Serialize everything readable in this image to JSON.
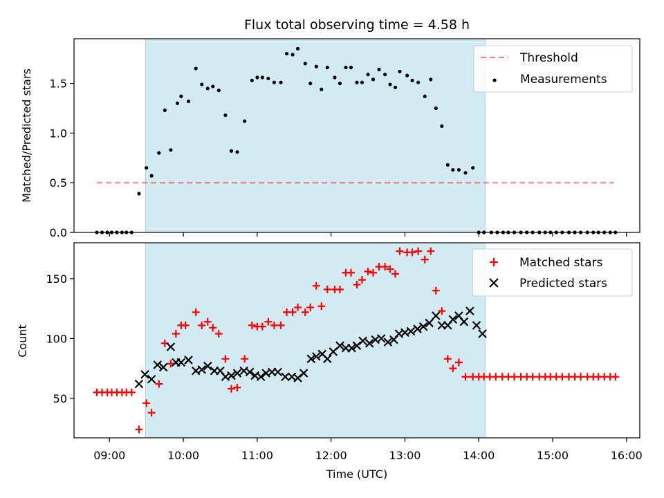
{
  "title": "Flux total observing time = 4.58 h",
  "x_axis": {
    "label": "Time (UTC)",
    "ticks": [
      "09:00",
      "10:00",
      "11:00",
      "12:00",
      "13:00",
      "14:00",
      "15:00",
      "16:00"
    ],
    "tick_hours": [
      9,
      10,
      11,
      12,
      13,
      14,
      15,
      16
    ],
    "range_hours": [
      8.52,
      16.18
    ]
  },
  "shaded_interval_hours": [
    9.49,
    14.09
  ],
  "shade_color": "#add8e6",
  "chart_data": [
    {
      "type": "scatter",
      "ylabel": "Matched/Predicted stars",
      "ylim": [
        0,
        1.95
      ],
      "yticks": [
        0.0,
        0.5,
        1.0,
        1.5
      ],
      "ytick_labels": [
        "0.0",
        "0.5",
        "1.0",
        "1.5"
      ],
      "legend_placement": "top-right",
      "threshold": {
        "name": "Threshold",
        "value": 0.5,
        "x": [
          8.83,
          15.83
        ],
        "color": "#ff0000",
        "style": "dashed"
      },
      "series": [
        {
          "name": "Measurements",
          "marker": "dot",
          "color": "#000000",
          "x": [
            8.83,
            8.9,
            8.97,
            9.03,
            9.1,
            9.17,
            9.23,
            9.3,
            9.4,
            9.5,
            9.57,
            9.67,
            9.75,
            9.83,
            9.92,
            9.97,
            10.07,
            10.17,
            10.25,
            10.33,
            10.4,
            10.48,
            10.57,
            10.65,
            10.73,
            10.83,
            10.93,
            11.0,
            11.07,
            11.15,
            11.23,
            11.32,
            11.4,
            11.48,
            11.55,
            11.65,
            11.72,
            11.8,
            11.87,
            11.95,
            12.05,
            12.12,
            12.2,
            12.27,
            12.35,
            12.42,
            12.5,
            12.57,
            12.65,
            12.73,
            12.8,
            12.87,
            12.93,
            13.03,
            13.1,
            13.18,
            13.27,
            13.35,
            13.42,
            13.5,
            13.58,
            13.65,
            13.73,
            13.82,
            13.92,
            14.0,
            14.07,
            14.17,
            14.25,
            14.33,
            14.4,
            14.48,
            14.57,
            14.65,
            14.73,
            14.82,
            14.9,
            14.97,
            15.05,
            15.13,
            15.22,
            15.3,
            15.38,
            15.47,
            15.55,
            15.62,
            15.7,
            15.78,
            15.85
          ],
          "y": [
            0,
            0,
            0,
            0,
            0,
            0,
            0,
            0,
            0.39,
            0.65,
            0.57,
            0.8,
            1.23,
            0.83,
            1.3,
            1.37,
            1.32,
            1.65,
            1.49,
            1.45,
            1.47,
            1.43,
            1.18,
            0.82,
            0.81,
            1.12,
            1.53,
            1.56,
            1.56,
            1.55,
            1.51,
            1.51,
            1.8,
            1.79,
            1.85,
            1.7,
            1.5,
            1.67,
            1.44,
            1.66,
            1.56,
            1.5,
            1.66,
            1.66,
            1.51,
            1.51,
            1.59,
            1.54,
            1.64,
            1.59,
            1.49,
            1.46,
            1.62,
            1.58,
            1.53,
            1.51,
            1.37,
            1.54,
            1.25,
            1.07,
            0.68,
            0.63,
            0.63,
            0.6,
            0.65,
            0,
            0,
            0,
            0,
            0,
            0,
            0,
            0,
            0,
            0,
            0,
            0,
            0,
            0,
            0,
            0,
            0,
            0,
            0,
            0,
            0,
            0,
            0,
            0
          ]
        }
      ]
    },
    {
      "type": "scatter",
      "ylabel": "Count",
      "ylim": [
        17,
        180
      ],
      "yticks": [
        50,
        100,
        150
      ],
      "ytick_labels": [
        "50",
        "100",
        "150"
      ],
      "legend_placement": "top-right",
      "series": [
        {
          "name": "Matched stars",
          "marker": "plus",
          "color": "#ff0000",
          "x": [
            8.83,
            8.9,
            8.97,
            9.03,
            9.1,
            9.17,
            9.23,
            9.3,
            9.4,
            9.5,
            9.57,
            9.67,
            9.75,
            9.83,
            9.9,
            9.97,
            10.03,
            10.17,
            10.25,
            10.33,
            10.4,
            10.48,
            10.57,
            10.65,
            10.73,
            10.83,
            10.93,
            11.0,
            11.07,
            11.15,
            11.23,
            11.32,
            11.4,
            11.48,
            11.55,
            11.65,
            11.72,
            11.8,
            11.87,
            11.95,
            12.05,
            12.12,
            12.2,
            12.27,
            12.35,
            12.42,
            12.5,
            12.57,
            12.65,
            12.73,
            12.8,
            12.87,
            12.93,
            13.03,
            13.1,
            13.18,
            13.27,
            13.35,
            13.42,
            13.5,
            13.58,
            13.65,
            13.73,
            13.82,
            13.92,
            14.0,
            14.07,
            14.15,
            14.23,
            14.32,
            14.4,
            14.48,
            14.57,
            14.65,
            14.73,
            14.82,
            14.9,
            14.97,
            15.05,
            15.13,
            15.22,
            15.3,
            15.38,
            15.47,
            15.55,
            15.62,
            15.7,
            15.78,
            15.85
          ],
          "y": [
            55,
            55,
            55,
            55,
            55,
            55,
            55,
            55,
            24,
            46,
            38,
            62,
            96,
            79,
            104,
            111,
            111,
            122,
            111,
            114,
            109,
            104,
            83,
            58,
            59,
            83,
            111,
            110,
            110,
            114,
            111,
            111,
            122,
            122,
            126,
            122,
            126,
            144,
            127,
            141,
            141,
            141,
            155,
            155,
            145,
            149,
            156,
            155,
            160,
            160,
            158,
            154,
            173,
            172,
            172,
            173,
            166,
            173,
            140,
            123,
            83,
            75,
            80,
            68,
            68,
            68,
            68,
            68,
            68,
            68,
            68,
            68,
            68,
            68,
            68,
            68,
            68,
            68,
            68,
            68,
            68,
            68,
            68,
            68,
            68,
            68,
            68,
            68,
            68
          ]
        },
        {
          "name": "Predicted stars",
          "marker": "x",
          "color": "#000000",
          "x": [
            9.4,
            9.48,
            9.57,
            9.65,
            9.73,
            9.83,
            9.9,
            9.97,
            10.07,
            10.17,
            10.25,
            10.33,
            10.42,
            10.5,
            10.57,
            10.65,
            10.73,
            10.82,
            10.9,
            10.97,
            11.05,
            11.12,
            11.2,
            11.28,
            11.38,
            11.47,
            11.55,
            11.63,
            11.73,
            11.8,
            11.88,
            11.95,
            12.03,
            12.12,
            12.2,
            12.28,
            12.35,
            12.43,
            12.52,
            12.6,
            12.68,
            12.77,
            12.85,
            12.92,
            13.0,
            13.08,
            13.17,
            13.25,
            13.33,
            13.42,
            13.5,
            13.58,
            13.65,
            13.73,
            13.8,
            13.88,
            13.97,
            14.05
          ],
          "y": [
            62,
            70,
            66,
            78,
            76,
            93,
            80,
            80,
            82,
            73,
            74,
            77,
            73,
            73,
            68,
            69,
            71,
            73,
            72,
            69,
            68,
            71,
            72,
            72,
            68,
            68,
            67,
            71,
            83,
            85,
            87,
            83,
            89,
            94,
            92,
            92,
            94,
            98,
            96,
            99,
            100,
            97,
            99,
            104,
            105,
            106,
            108,
            110,
            113,
            119,
            111,
            111,
            116,
            119,
            114,
            123,
            111,
            104
          ]
        }
      ]
    }
  ]
}
